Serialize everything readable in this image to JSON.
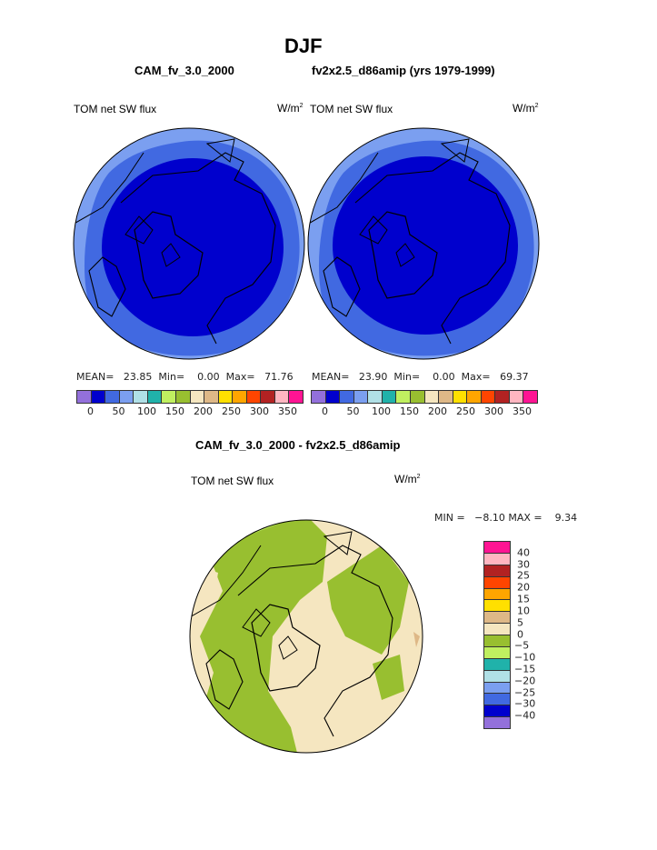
{
  "title": "DJF",
  "panels": [
    {
      "case": "CAM_fv_3.0_2000",
      "left_label": "TOM net SW flux",
      "units": "W/m",
      "units_sup": "2",
      "stats": {
        "mean_label": "MEAN=",
        "mean": "23.85",
        "min_label": "Min=",
        "min": "0.00",
        "max_label": "Max=",
        "max": "71.76"
      }
    },
    {
      "case": "fv2x2.5_d86amip (yrs 1979-1999)",
      "left_label": "TOM net SW flux",
      "units": "W/m",
      "units_sup": "2",
      "stats": {
        "mean_label": "MEAN=",
        "mean": "23.90",
        "min_label": "Min=",
        "min": "0.00",
        "max_label": "Max=",
        "max": "69.37"
      }
    }
  ],
  "colorbar": {
    "labels": [
      "0",
      "50",
      "100",
      "150",
      "200",
      "250",
      "300",
      "350"
    ],
    "colors": [
      "#9370db",
      "#0000cd",
      "#4169e1",
      "#7b9ff0",
      "#b0e0e6",
      "#20b2aa",
      "#c0f060",
      "#98bf30",
      "#f5e6c0",
      "#deb887",
      "#ffe000",
      "#ffa500",
      "#ff4500",
      "#b22222",
      "#ffb6c1",
      "#ff1493"
    ]
  },
  "diff": {
    "title": "CAM_fv_3.0_2000 - fv2x2.5_d86amip",
    "left_label": "TOM net SW flux",
    "units": "W/m",
    "units_sup": "2",
    "stats": "MIN =   −8.10 MAX =    9.34",
    "colorbar_labels": [
      "40",
      "30",
      "25",
      "20",
      "15",
      "10",
      "5",
      "0",
      "−5",
      "−10",
      "−15",
      "−20",
      "−25",
      "−30",
      "−40"
    ],
    "colors_top_to_bottom": [
      "#ff1493",
      "#ffb6c1",
      "#b22222",
      "#ff4500",
      "#ffa500",
      "#ffe000",
      "#deb887",
      "#f5e6c0",
      "#98bf30",
      "#c0f060",
      "#20b2aa",
      "#b0e0e6",
      "#7b9ff0",
      "#4169e1",
      "#0000cd",
      "#9370db"
    ]
  }
}
